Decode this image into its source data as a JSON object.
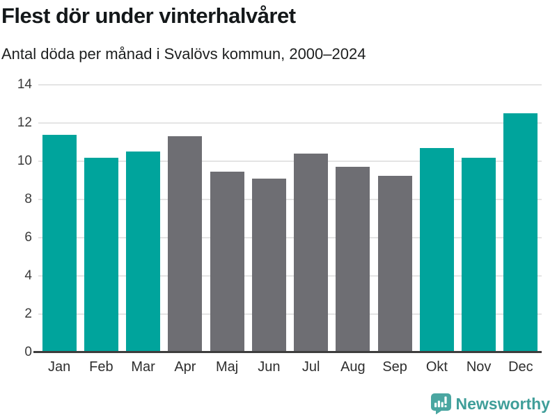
{
  "header": {
    "title": "Flest dör under vinterhalvåret",
    "subtitle": "Antal döda per månad i Svalövs kommun, 2000–2024"
  },
  "chart_data": {
    "type": "bar",
    "title": "Flest dör under vinterhalvåret",
    "subtitle": "Antal döda per månad i Svalövs kommun, 2000–2024",
    "categories": [
      "Jan",
      "Feb",
      "Mar",
      "Apr",
      "Maj",
      "Jun",
      "Jul",
      "Aug",
      "Sep",
      "Okt",
      "Nov",
      "Dec"
    ],
    "values": [
      11.4,
      10.2,
      10.5,
      11.3,
      9.45,
      9.1,
      10.4,
      9.7,
      9.25,
      10.7,
      10.2,
      12.5
    ],
    "bar_groups": [
      "winter",
      "winter",
      "winter",
      "summer",
      "summer",
      "summer",
      "summer",
      "summer",
      "summer",
      "winter",
      "winter",
      "winter"
    ],
    "group_colors": {
      "winter": "#00a49c",
      "summer": "#6e6e73"
    },
    "xlabel": "",
    "ylabel": "",
    "ylim": [
      0,
      14
    ],
    "yticks": [
      0,
      2,
      4,
      6,
      8,
      10,
      12,
      14
    ],
    "grid": true,
    "legend": "none",
    "gridline_color": "#e4e4e4",
    "axis_color": "#3d3d3d"
  },
  "footer": {
    "brand": "Newsworthy",
    "brand_color": "#3f9e99",
    "logo_icon": "newsworthy-bar-chart-speech-bubble-icon"
  }
}
